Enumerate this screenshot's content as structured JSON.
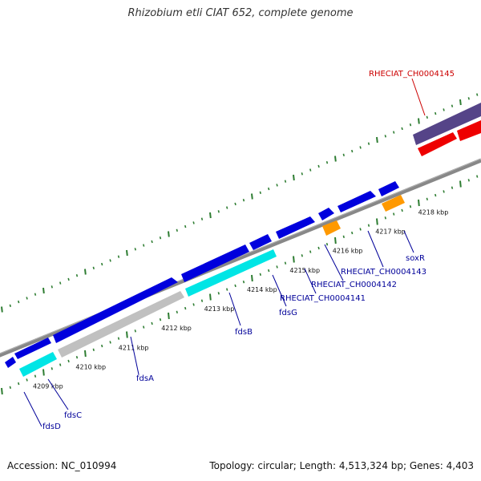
{
  "title": "Rhizobium etli CIAT 652, complete genome",
  "footer": {
    "accession": "Accession: NC_010994",
    "stats": "Topology: circular; Length: 4,513,324 bp; Genes: 4,403"
  },
  "colors": {
    "background": "#ffffff",
    "backbone": "#888888",
    "tick": "#2e7d32",
    "gene_blue": "#0000dd",
    "gene_cyan": "#00e5e5",
    "gene_gray": "#c0c0c0",
    "gene_orange": "#ff9900",
    "gene_red": "#ee0000",
    "gene_slate": "#554488",
    "label_blue": "#000099",
    "label_red": "#cc0000"
  },
  "scale_labels": [
    {
      "kbp": 4209,
      "text": "4209 kbp"
    },
    {
      "kbp": 4210,
      "text": "4210 kbp"
    },
    {
      "kbp": 4211,
      "text": "4211 kbp"
    },
    {
      "kbp": 4212,
      "text": "4212 kbp"
    },
    {
      "kbp": 4213,
      "text": "4213 kbp"
    },
    {
      "kbp": 4214,
      "text": "4214 kbp"
    },
    {
      "kbp": 4215,
      "text": "4215 kbp"
    },
    {
      "kbp": 4216,
      "text": "4216 kbp"
    },
    {
      "kbp": 4217,
      "text": "4217 kbp"
    },
    {
      "kbp": 4218,
      "text": "4218 kbp"
    }
  ],
  "gene_labels": [
    {
      "text": "fdsD",
      "color": "label_blue"
    },
    {
      "text": "fdsC",
      "color": "label_blue"
    },
    {
      "text": "fdsA",
      "color": "label_blue"
    },
    {
      "text": "fdsB",
      "color": "label_blue"
    },
    {
      "text": "fdsG",
      "color": "label_blue"
    },
    {
      "text": "RHECIAT_CH0004141",
      "color": "label_blue"
    },
    {
      "text": "RHECIAT_CH0004142",
      "color": "label_blue"
    },
    {
      "text": "RHECIAT_CH0004143",
      "color": "label_blue"
    },
    {
      "text": "soxR",
      "color": "label_blue"
    },
    {
      "text": "RHECIAT_CH0004145",
      "color": "label_red"
    }
  ]
}
